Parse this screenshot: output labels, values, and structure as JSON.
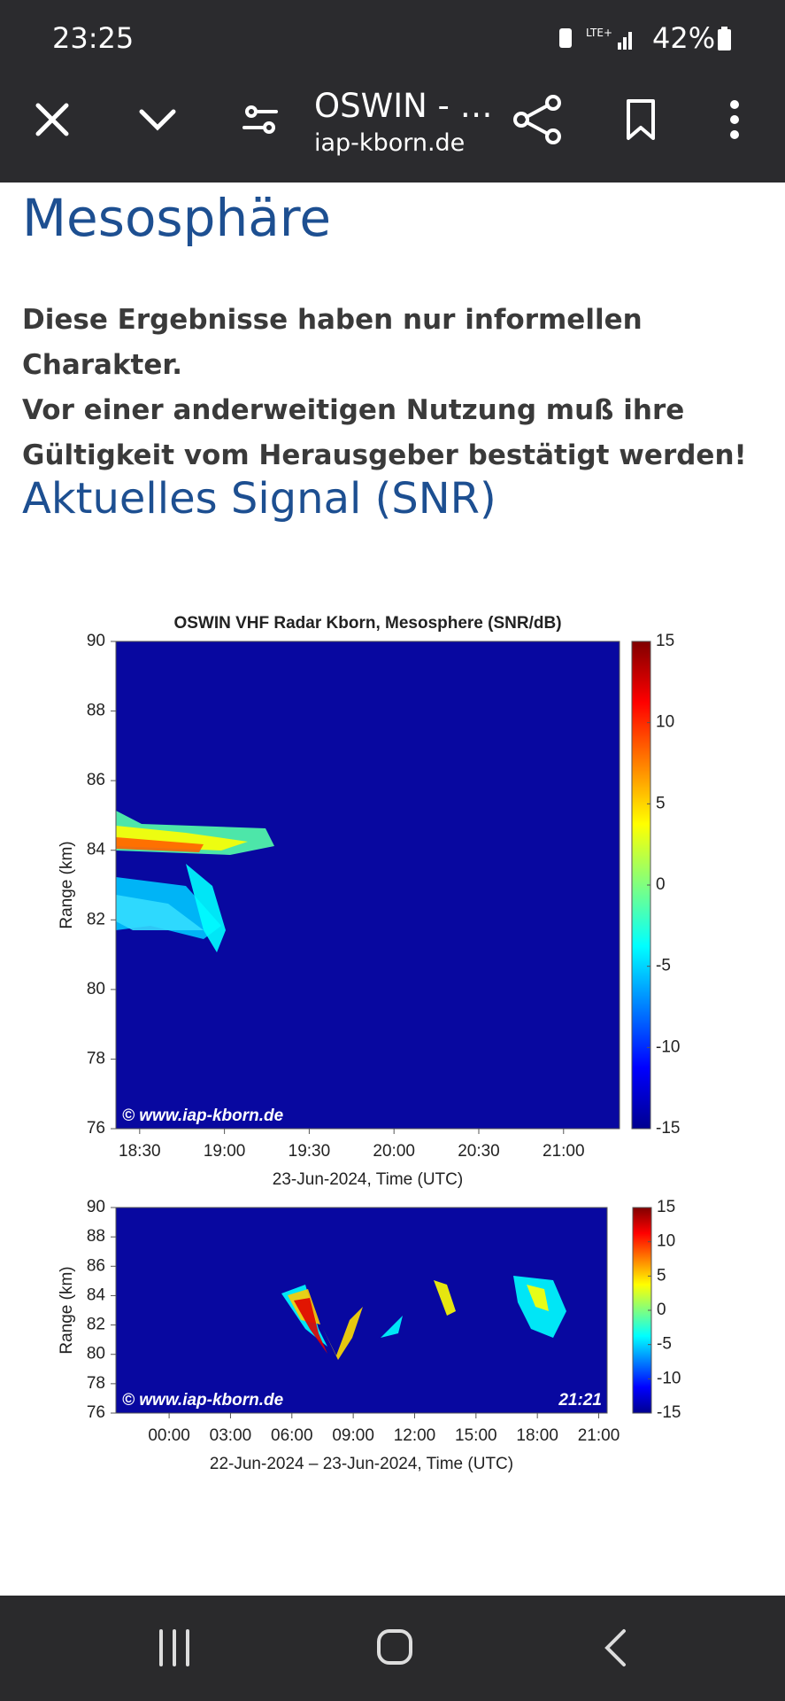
{
  "status_bar": {
    "time": "23:25",
    "network": "LTE+",
    "battery": "42%"
  },
  "toolbar": {
    "title": "OSWIN - …",
    "url": "iap-kborn.de"
  },
  "article": {
    "heading": "Mesosphäre",
    "notice": [
      "Diese Ergebnisse haben nur informellen Charakter.",
      "Vor einer anderweitigen Nutzung muß ihre",
      "Gültigkeit vom Herausgeber bestätigt werden!"
    ],
    "subheading": "Aktuelles Signal (SNR)"
  },
  "figures": [
    {
      "title": "OSWIN VHF Radar Kborn, Mesosphere (SNR/dB)",
      "ylabel": "Range (km)",
      "xlabel": "23-Jun-2024, Time (UTC)",
      "watermark": "© www.iap-kborn.de",
      "ylim": [
        76,
        90
      ],
      "yticks": [
        76,
        78,
        80,
        82,
        84,
        86,
        88,
        90
      ],
      "xlim": [
        18.36,
        21.33
      ],
      "xticks": [
        {
          "value": 18.5,
          "label": "18:30"
        },
        {
          "value": 19,
          "label": "19:00"
        },
        {
          "value": 19.5,
          "label": "19:30"
        },
        {
          "value": 20,
          "label": "20:00"
        },
        {
          "value": 20.5,
          "label": "20:30"
        },
        {
          "value": 21,
          "label": "21:00"
        }
      ],
      "clim": [
        -15,
        15
      ],
      "cticks": [
        -15,
        -10,
        -5,
        0,
        5,
        10,
        15
      ]
    },
    {
      "ylabel": "Range (km)",
      "xlabel": "22-Jun-2024 – 23-Jun-2024, Time (UTC)",
      "watermark": "© www.iap-kborn.de",
      "timestamp": "21:21",
      "ylim": [
        76,
        90
      ],
      "yticks": [
        76,
        78,
        80,
        82,
        84,
        86,
        88,
        90
      ],
      "xlim": [
        -2.6,
        21.41
      ],
      "xticks": [
        {
          "value": 0,
          "label": "00:00"
        },
        {
          "value": 3,
          "label": "03:00"
        },
        {
          "value": 6,
          "label": "06:00"
        },
        {
          "value": 9,
          "label": "09:00"
        },
        {
          "value": 12,
          "label": "12:00"
        },
        {
          "value": 15,
          "label": "15:00"
        },
        {
          "value": 18,
          "label": "18:00"
        },
        {
          "value": 21,
          "label": "21:00"
        }
      ],
      "clim": [
        -15,
        15
      ],
      "cticks": [
        -15,
        -10,
        -5,
        0,
        5,
        10,
        15
      ]
    }
  ]
}
